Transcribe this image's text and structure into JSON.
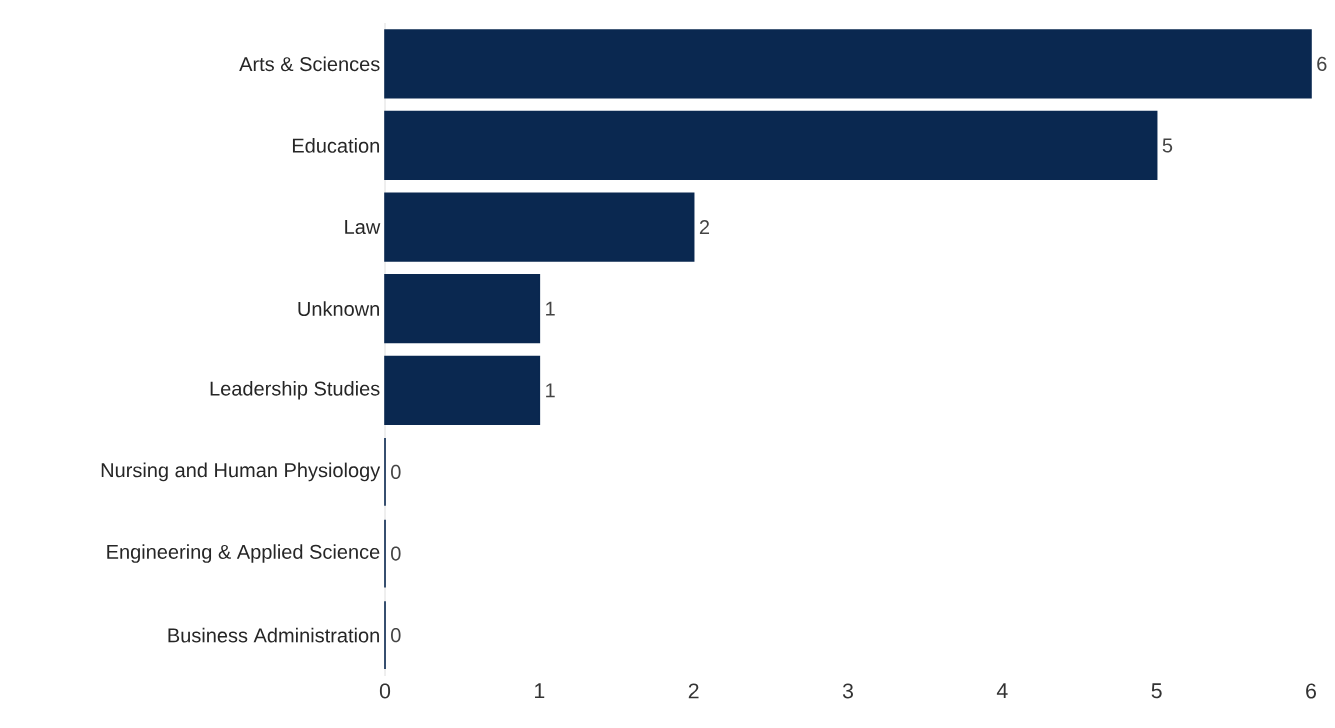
{
  "chart_data": {
    "type": "bar",
    "orientation": "horizontal",
    "categories": [
      "Arts & Sciences",
      "Education",
      "Law",
      "Unknown",
      "Leadership Studies",
      "Nursing and Human Physiology",
      "Engineering & Applied Science",
      "Business Administration"
    ],
    "values": [
      6,
      5,
      2,
      1,
      1,
      0,
      0,
      0
    ],
    "color": "#0a2850",
    "xlim": [
      0,
      6
    ],
    "xticks": [
      0,
      1,
      2,
      3,
      4,
      5,
      6
    ],
    "grid": false,
    "data_labels": true
  }
}
